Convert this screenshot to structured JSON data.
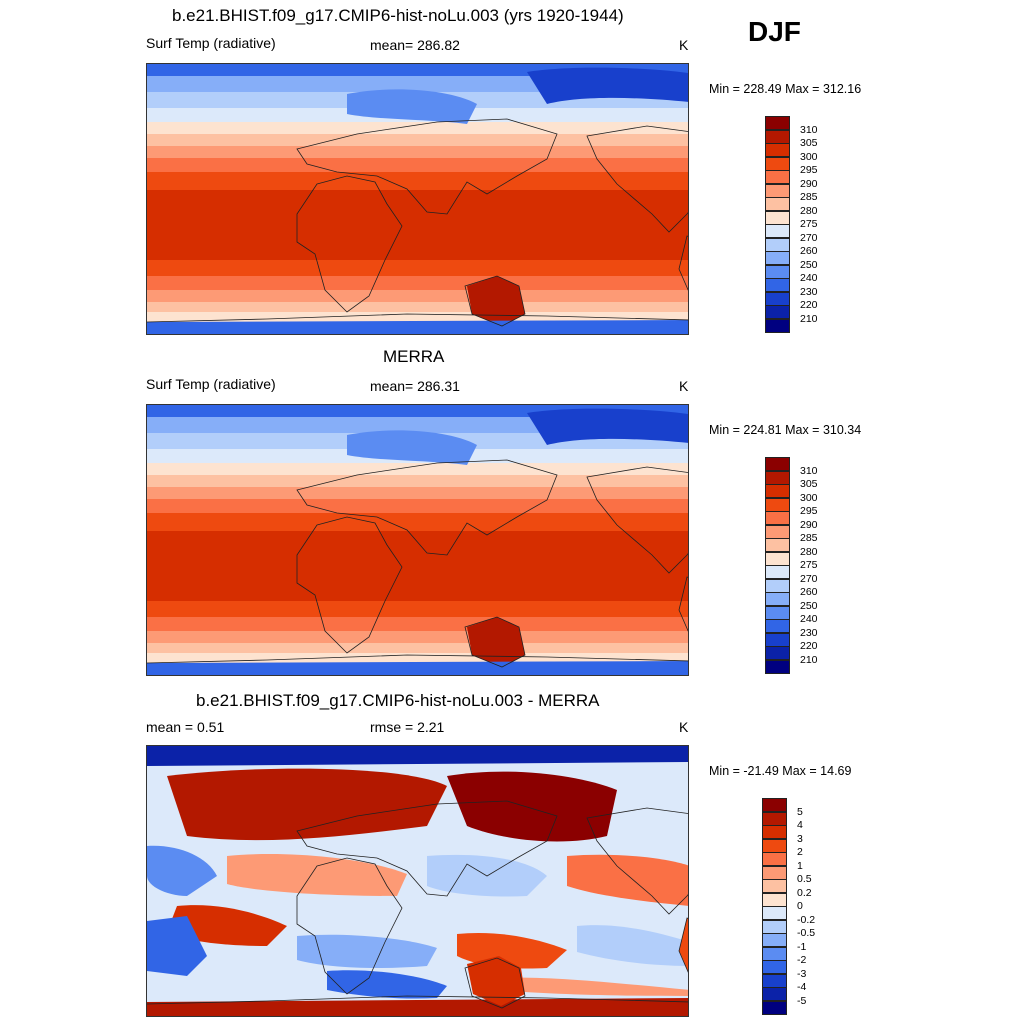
{
  "season": "DJF",
  "panels": [
    {
      "title": "b.e21.BHIST.f09_g17.CMIP6-hist-noLu.003 (yrs 1920-1944)",
      "left_label": "Surf Temp (radiative)",
      "center_label": "mean= 286.82",
      "units": "K",
      "minmax": "Min = 228.49 Max = 312.16",
      "kind": "abs"
    },
    {
      "title": "MERRA",
      "left_label": "Surf Temp (radiative)",
      "center_label": "mean= 286.31",
      "units": "K",
      "minmax": "Min = 224.81 Max = 310.34",
      "kind": "abs2"
    },
    {
      "title": "b.e21.BHIST.f09_g17.CMIP6-hist-noLu.003 - MERRA",
      "left_label": "mean =   0.51",
      "center_label": "rmse =   2.21",
      "units": "K",
      "minmax": "Min = -21.49 Max =  14.69",
      "kind": "diff"
    }
  ],
  "colorbars": {
    "abs": {
      "labels": [
        "310",
        "305",
        "300",
        "295",
        "290",
        "285",
        "280",
        "275",
        "270",
        "260",
        "250",
        "240",
        "230",
        "220",
        "210"
      ],
      "colors": [
        "#8b0000",
        "#b31800",
        "#d62e00",
        "#ee4a10",
        "#fa7045",
        "#fd9a75",
        "#fdc1a2",
        "#fde3d0",
        "#dce9fa",
        "#b2cefa",
        "#86aef8",
        "#5b8cf2",
        "#3165e6",
        "#1840cc",
        "#0b22a8",
        "#000080"
      ]
    },
    "diff": {
      "labels": [
        "5",
        "4",
        "3",
        "2",
        "1",
        "0.5",
        "0.2",
        "0",
        "-0.2",
        "-0.5",
        "-1",
        "-2",
        "-3",
        "-4",
        "-5"
      ],
      "colors": [
        "#8b0000",
        "#b31800",
        "#d62e00",
        "#ee4a10",
        "#fa7045",
        "#fd9a75",
        "#fdc1a2",
        "#fde3d0",
        "#dce9fa",
        "#b2cefa",
        "#86aef8",
        "#5b8cf2",
        "#3165e6",
        "#1840cc",
        "#0b22a8",
        "#000080"
      ]
    }
  }
}
